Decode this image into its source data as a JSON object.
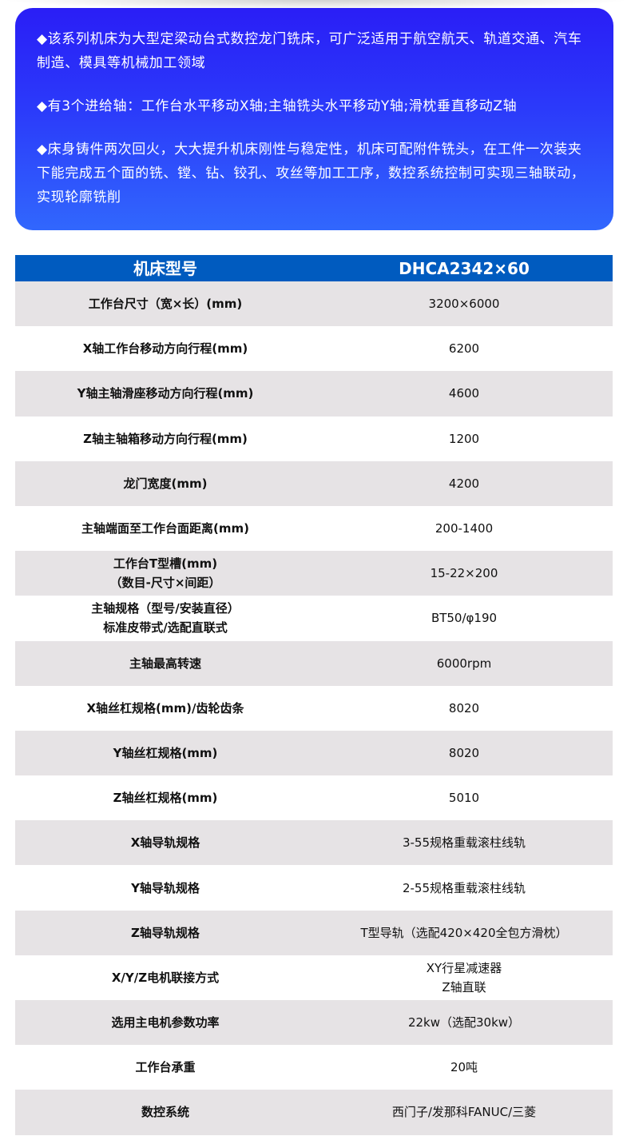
{
  "intro": [
    "◆该系列机床为大型定梁动台式数控龙门铣床，可广泛适用于航空航天、轨道交通、汽车制造、模具等机械加工领域",
    "◆有3个进给轴：工作台水平移动X轴;主轴铣头水平移动Y轴;滑枕垂直移动Z轴",
    "◆床身铸件两次回火，大大提升机床刚性与稳定性，机床可配附件铣头，在工件一次装夹下能完成五个面的铣、镗、钻、铰孔、攻丝等加工工序，数控系统控制可实现三轴联动，实现轮廓铣削"
  ],
  "table": {
    "header": {
      "label": "机床型号",
      "value": "DHCA2342×60"
    },
    "rows": [
      {
        "label": "工作台尺寸（宽×长）(mm)",
        "value": "3200×6000"
      },
      {
        "label": "X轴工作台移动方向行程(mm)",
        "value": "6200"
      },
      {
        "label": "Y轴主轴滑座移动方向行程(mm)",
        "value": "4600"
      },
      {
        "label": "Z轴主轴箱移动方向行程(mm)",
        "value": "1200"
      },
      {
        "label": "龙门宽度(mm)",
        "value": "4200"
      },
      {
        "label": "主轴端面至工作台面距离(mm)",
        "value": "200-1400"
      },
      {
        "label": "工作台T型槽(mm)\n（数目-尺寸×间距）",
        "value": "15-22×200"
      },
      {
        "label": "主轴规格（型号/安装直径）\n标准皮带式/选配直联式",
        "value": "BT50/φ190"
      },
      {
        "label": "主轴最高转速",
        "value": "6000rpm"
      },
      {
        "label": "X轴丝杠规格(mm)/齿轮齿条",
        "value": "8020"
      },
      {
        "label": "Y轴丝杠规格(mm)",
        "value": "8020"
      },
      {
        "label": "Z轴丝杠规格(mm)",
        "value": "5010"
      },
      {
        "label": "X轴导轨规格",
        "value": "3-55规格重载滚柱线轨"
      },
      {
        "label": "Y轴导轨规格",
        "value": "2-55规格重载滚柱线轨"
      },
      {
        "label": "Z轴导轨规格",
        "value": "T型导轨（选配420×420全包方滑枕）"
      },
      {
        "label": "X/Y/Z电机联接方式",
        "value": "XY行星减速器\nZ轴直联"
      },
      {
        "label": "选用主电机参数功率",
        "value": "22kw（选配30kw）"
      },
      {
        "label": "工作台承重",
        "value": "20吨"
      },
      {
        "label": "数控系统",
        "value": "西门子/发那科FANUC/三菱"
      }
    ]
  }
}
